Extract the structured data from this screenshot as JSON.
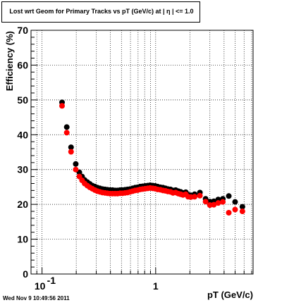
{
  "title": "Lost wrt Geom for Primary Tracks vs pT (GeV/c) at |  η | <= 1.0",
  "datestamp": "Wed Nov  9 10:49:56 2011",
  "chart_data": {
    "type": "scatter",
    "title": "Lost wrt Geom for Primary Tracks vs pT (GeV/c) at |  η | <= 1.0",
    "xlabel": "pT (GeV/c)",
    "ylabel": "Efficiency (%)",
    "x_scale": "log",
    "xlim": [
      0.08,
      7.2
    ],
    "ylim": [
      0,
      70
    ],
    "grid": true,
    "x_ticks": [
      {
        "value": 0.1,
        "base": "10",
        "exp": "-1"
      },
      {
        "value": 1,
        "base": "1",
        "exp": ""
      }
    ],
    "y_ticks": [
      {
        "value": 0,
        "label": "0"
      },
      {
        "value": 10,
        "label": "10"
      },
      {
        "value": 20,
        "label": "20"
      },
      {
        "value": 30,
        "label": "30"
      },
      {
        "value": 40,
        "label": "40"
      },
      {
        "value": 50,
        "label": "50"
      },
      {
        "value": 60,
        "label": "60"
      },
      {
        "value": 70,
        "label": "70"
      }
    ],
    "series": [
      {
        "color": "#000000",
        "points": [
          {
            "x": 0.15,
            "y": 49.3
          },
          {
            "x": 0.165,
            "y": 42.2
          },
          {
            "x": 0.18,
            "y": 36.4
          },
          {
            "x": 0.198,
            "y": 31.6
          },
          {
            "x": 0.213,
            "y": 29.2
          },
          {
            "x": 0.225,
            "y": 28.0
          },
          {
            "x": 0.237,
            "y": 27.0
          },
          {
            "x": 0.25,
            "y": 26.4
          },
          {
            "x": 0.263,
            "y": 25.9
          },
          {
            "x": 0.277,
            "y": 25.4
          },
          {
            "x": 0.292,
            "y": 25.1
          },
          {
            "x": 0.307,
            "y": 24.8
          },
          {
            "x": 0.323,
            "y": 24.6
          },
          {
            "x": 0.34,
            "y": 24.4
          },
          {
            "x": 0.358,
            "y": 24.3
          },
          {
            "x": 0.376,
            "y": 24.2
          },
          {
            "x": 0.396,
            "y": 24.1
          },
          {
            "x": 0.417,
            "y": 24.1
          },
          {
            "x": 0.439,
            "y": 24.0
          },
          {
            "x": 0.462,
            "y": 24.0
          },
          {
            "x": 0.486,
            "y": 24.1
          },
          {
            "x": 0.511,
            "y": 24.1
          },
          {
            "x": 0.538,
            "y": 24.2
          },
          {
            "x": 0.566,
            "y": 24.3
          },
          {
            "x": 0.596,
            "y": 24.4
          },
          {
            "x": 0.627,
            "y": 24.6
          },
          {
            "x": 0.66,
            "y": 24.8
          },
          {
            "x": 0.694,
            "y": 24.9
          },
          {
            "x": 0.73,
            "y": 25.1
          },
          {
            "x": 0.768,
            "y": 25.2
          },
          {
            "x": 0.808,
            "y": 25.3
          },
          {
            "x": 0.851,
            "y": 25.4
          },
          {
            "x": 0.895,
            "y": 25.5
          },
          {
            "x": 0.942,
            "y": 25.4
          },
          {
            "x": 0.99,
            "y": 25.3
          },
          {
            "x": 1.04,
            "y": 25.1
          },
          {
            "x": 1.1,
            "y": 24.9
          },
          {
            "x": 1.16,
            "y": 24.8
          },
          {
            "x": 1.22,
            "y": 24.6
          },
          {
            "x": 1.28,
            "y": 24.4
          },
          {
            "x": 1.35,
            "y": 24.3
          },
          {
            "x": 1.42,
            "y": 24.0
          },
          {
            "x": 1.5,
            "y": 24.1
          },
          {
            "x": 1.58,
            "y": 23.8
          },
          {
            "x": 1.66,
            "y": 23.6
          },
          {
            "x": 1.74,
            "y": 23.3
          },
          {
            "x": 1.84,
            "y": 23.5
          },
          {
            "x": 1.93,
            "y": 22.8
          },
          {
            "x": 2.04,
            "y": 22.6
          },
          {
            "x": 2.2,
            "y": 22.9
          },
          {
            "x": 2.45,
            "y": 23.4
          },
          {
            "x": 2.75,
            "y": 21.6
          },
          {
            "x": 3.0,
            "y": 20.8
          },
          {
            "x": 3.25,
            "y": 20.9
          },
          {
            "x": 3.55,
            "y": 21.4
          },
          {
            "x": 3.9,
            "y": 21.6
          },
          {
            "x": 4.4,
            "y": 22.4
          },
          {
            "x": 5.0,
            "y": 20.7
          },
          {
            "x": 5.8,
            "y": 19.3
          }
        ]
      },
      {
        "color": "#ff0000",
        "points": [
          {
            "x": 0.15,
            "y": 48.3
          },
          {
            "x": 0.165,
            "y": 40.6
          },
          {
            "x": 0.18,
            "y": 35.1
          },
          {
            "x": 0.198,
            "y": 30.0
          },
          {
            "x": 0.213,
            "y": 28.0
          },
          {
            "x": 0.225,
            "y": 26.9
          },
          {
            "x": 0.237,
            "y": 26.0
          },
          {
            "x": 0.25,
            "y": 25.4
          },
          {
            "x": 0.263,
            "y": 24.9
          },
          {
            "x": 0.277,
            "y": 24.5
          },
          {
            "x": 0.292,
            "y": 24.1
          },
          {
            "x": 0.307,
            "y": 23.8
          },
          {
            "x": 0.323,
            "y": 23.6
          },
          {
            "x": 0.34,
            "y": 23.4
          },
          {
            "x": 0.358,
            "y": 23.3
          },
          {
            "x": 0.376,
            "y": 23.2
          },
          {
            "x": 0.396,
            "y": 23.1
          },
          {
            "x": 0.417,
            "y": 23.1
          },
          {
            "x": 0.439,
            "y": 23.1
          },
          {
            "x": 0.462,
            "y": 23.1
          },
          {
            "x": 0.486,
            "y": 23.2
          },
          {
            "x": 0.511,
            "y": 23.2
          },
          {
            "x": 0.538,
            "y": 23.3
          },
          {
            "x": 0.566,
            "y": 23.4
          },
          {
            "x": 0.596,
            "y": 23.6
          },
          {
            "x": 0.627,
            "y": 23.8
          },
          {
            "x": 0.66,
            "y": 24.0
          },
          {
            "x": 0.694,
            "y": 24.1
          },
          {
            "x": 0.73,
            "y": 24.3
          },
          {
            "x": 0.768,
            "y": 24.4
          },
          {
            "x": 0.808,
            "y": 24.5
          },
          {
            "x": 0.851,
            "y": 24.6
          },
          {
            "x": 0.895,
            "y": 24.7
          },
          {
            "x": 0.942,
            "y": 24.6
          },
          {
            "x": 0.99,
            "y": 24.5
          },
          {
            "x": 1.04,
            "y": 24.3
          },
          {
            "x": 1.1,
            "y": 24.2
          },
          {
            "x": 1.16,
            "y": 24.0
          },
          {
            "x": 1.22,
            "y": 23.9
          },
          {
            "x": 1.28,
            "y": 23.7
          },
          {
            "x": 1.35,
            "y": 23.6
          },
          {
            "x": 1.42,
            "y": 23.3
          },
          {
            "x": 1.5,
            "y": 23.4
          },
          {
            "x": 1.58,
            "y": 23.1
          },
          {
            "x": 1.66,
            "y": 22.9
          },
          {
            "x": 1.74,
            "y": 22.7
          },
          {
            "x": 1.84,
            "y": 22.9
          },
          {
            "x": 1.93,
            "y": 22.2
          },
          {
            "x": 2.04,
            "y": 22.1
          },
          {
            "x": 2.2,
            "y": 22.2
          },
          {
            "x": 2.45,
            "y": 22.5
          },
          {
            "x": 2.75,
            "y": 20.8
          },
          {
            "x": 3.0,
            "y": 19.8
          },
          {
            "x": 3.25,
            "y": 19.9
          },
          {
            "x": 3.55,
            "y": 20.4
          },
          {
            "x": 3.9,
            "y": 20.7
          },
          {
            "x": 4.4,
            "y": 17.6
          },
          {
            "x": 5.0,
            "y": 18.5
          },
          {
            "x": 5.8,
            "y": 18.0
          }
        ]
      }
    ]
  }
}
